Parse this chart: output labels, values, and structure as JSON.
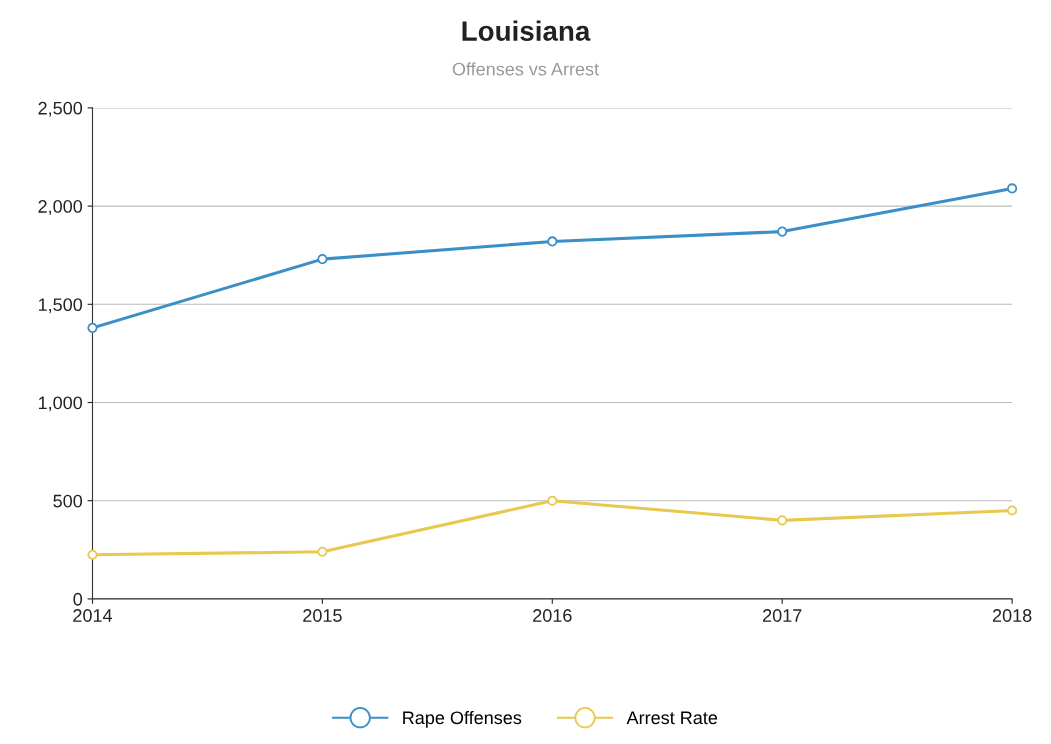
{
  "chart_data": {
    "type": "line",
    "title": "Louisiana",
    "subtitle": "Offenses vs Arrest",
    "x": [
      2014,
      2015,
      2016,
      2017,
      2018
    ],
    "series": [
      {
        "name": "Rape Offenses",
        "color": "#3a8fc7",
        "values": [
          1380,
          1730,
          1820,
          1870,
          2090
        ]
      },
      {
        "name": "Arrest Rate",
        "color": "#e8c94f",
        "values": [
          225,
          240,
          500,
          400,
          450
        ]
      }
    ],
    "xlim": [
      2014,
      2018
    ],
    "xticks": [
      2014,
      2015,
      2016,
      2017,
      2018
    ],
    "ylim": [
      0,
      2500
    ],
    "yticks": [
      {
        "value": 0,
        "label": "0"
      },
      {
        "value": 500,
        "label": "500"
      },
      {
        "value": 1000,
        "label": "1,000"
      },
      {
        "value": 1500,
        "label": "1,500"
      },
      {
        "value": 2000,
        "label": "2,000"
      },
      {
        "value": 2500,
        "label": "2,500"
      }
    ],
    "grid": "y",
    "legend": "bottom",
    "marker": "circle",
    "line_style": "solid"
  }
}
